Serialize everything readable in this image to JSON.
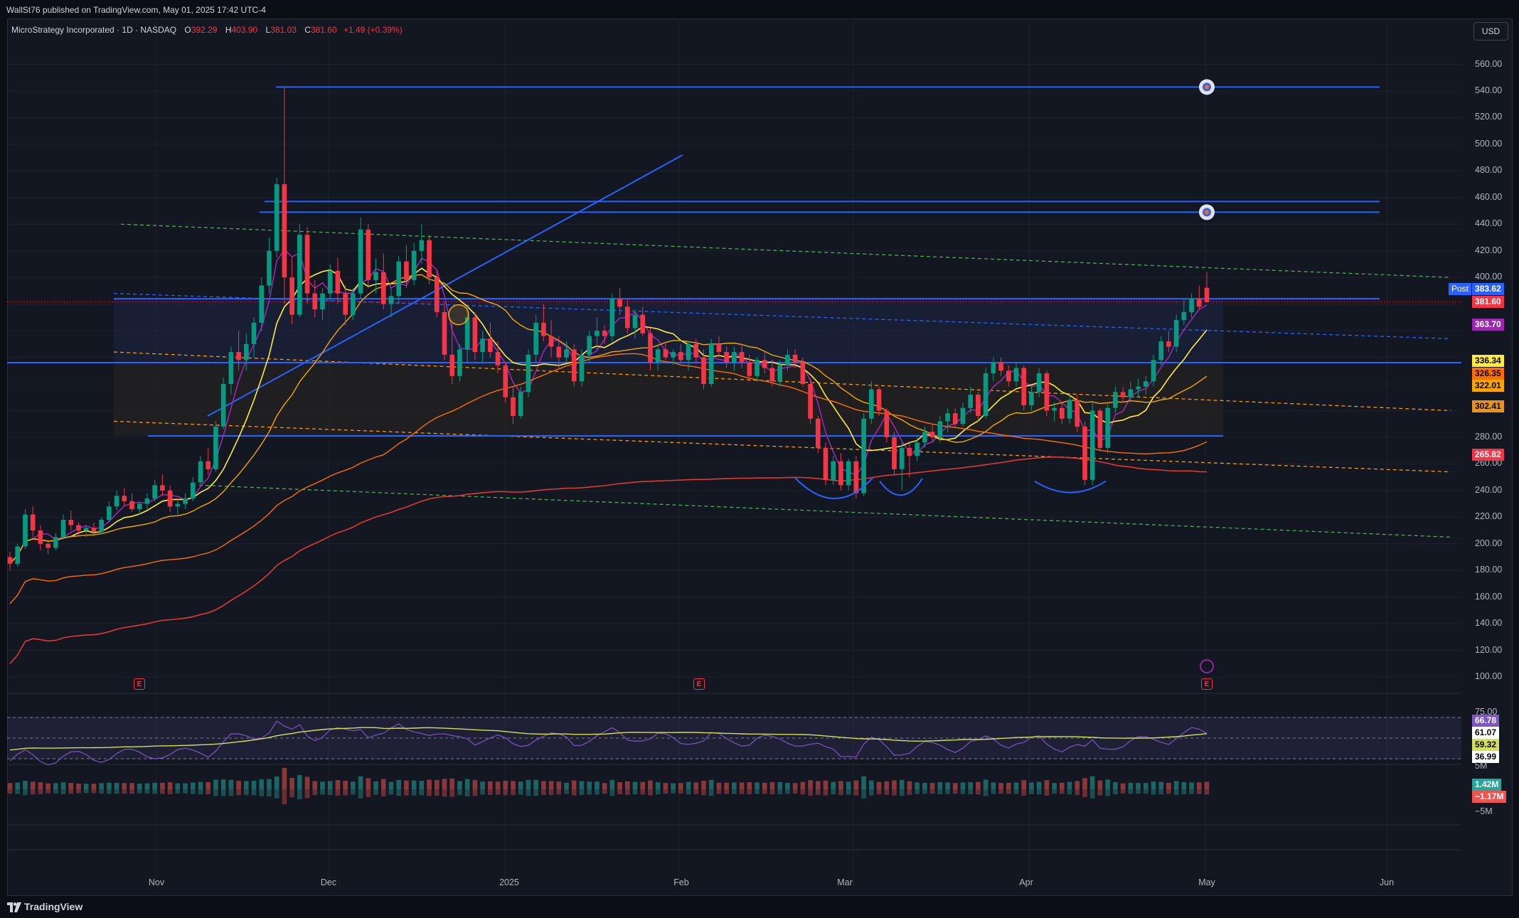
{
  "publish_info": "WallSt76 published on TradingView.com, May 01, 2025 17:42 UTC-4",
  "legend": {
    "symbol": "MicroStrategy Incorporated · 1D · NASDAQ",
    "o_label": "O",
    "o": "392.29",
    "h_label": "H",
    "h": "403.90",
    "l_label": "L",
    "l": "381.03",
    "c_label": "C",
    "c": "381.60",
    "change": "+1.49 (+0.39%)"
  },
  "currency": "USD",
  "brand": "TradingView",
  "colors": {
    "up": "#089981",
    "down": "#f23645",
    "background": "#131722",
    "trendline": "#2962ff"
  },
  "price_axis_labels": [
    "560.00",
    "540.00",
    "520.00",
    "500.00",
    "480.00",
    "460.00",
    "440.00",
    "420.00",
    "400.00",
    "280.00",
    "260.00",
    "240.00",
    "220.00",
    "200.00",
    "180.00",
    "160.00",
    "140.00",
    "120.00",
    "100.00"
  ],
  "price_badges": [
    {
      "text": "383.62",
      "prefix": "Post",
      "bg": "#2962ff",
      "fg": "#ffffff"
    },
    {
      "text": "381.60",
      "bg": "#f23645",
      "fg": "#ffffff"
    },
    {
      "text": "363.70",
      "bg": "#9c27b0",
      "fg": "#ffffff"
    },
    {
      "text": "336.34",
      "bg": "#ffeb3b",
      "fg": "#000000"
    },
    {
      "text": "326.35",
      "bg": "#ff6d00",
      "fg": "#000000"
    },
    {
      "text": "322.01",
      "bg": "#f7a600",
      "fg": "#000000"
    },
    {
      "text": "302.41",
      "bg": "#e8941a",
      "fg": "#000000"
    },
    {
      "text": "265.82",
      "bg": "#f23645",
      "fg": "#ffffff"
    }
  ],
  "rsi_axis": [
    "75.00"
  ],
  "rsi_badges": [
    {
      "text": "66.78",
      "bg": "#7e57c2",
      "fg": "#ffffff"
    },
    {
      "text": "61.07",
      "bg": "#ffffff",
      "fg": "#000000"
    },
    {
      "text": "59.32",
      "bg": "#d4e157",
      "fg": "#000000"
    },
    {
      "text": "36.99",
      "bg": "#ffffff",
      "fg": "#000000"
    }
  ],
  "volume_axis": [
    "5M",
    "−5M"
  ],
  "volume_badges": [
    {
      "text": "1.42M",
      "bg": "#26a69a",
      "fg": "#ffffff"
    },
    {
      "text": "−1.17M",
      "bg": "#ef5350",
      "fg": "#ffffff"
    }
  ],
  "time_axis": [
    "Nov",
    "Dec",
    "2025",
    "Feb",
    "Mar",
    "Apr",
    "May",
    "Jun"
  ],
  "earnings_marker": "E",
  "chart_data": {
    "type": "candlestick",
    "symbol": "MSTR",
    "interval": "1D",
    "ylim": [
      100,
      570
    ],
    "last": {
      "open": 392.29,
      "high": 403.9,
      "low": 381.03,
      "close": 381.6
    },
    "horizontal_levels": [
      543,
      457,
      449,
      383.6,
      336,
      281
    ],
    "patterns": [
      "two cup/inverse-head-and-shoulders arcs near 235-240"
    ],
    "candles": [
      [
        190,
        194,
        180,
        185
      ],
      [
        185,
        200,
        183,
        198
      ],
      [
        198,
        226,
        196,
        222
      ],
      [
        222,
        228,
        205,
        210
      ],
      [
        210,
        214,
        195,
        200
      ],
      [
        200,
        203,
        192,
        197
      ],
      [
        197,
        208,
        195,
        205
      ],
      [
        205,
        222,
        203,
        218
      ],
      [
        218,
        225,
        210,
        214
      ],
      [
        214,
        216,
        206,
        210
      ],
      [
        210,
        214,
        205,
        212
      ],
      [
        212,
        216,
        207,
        209
      ],
      [
        209,
        220,
        207,
        218
      ],
      [
        218,
        232,
        216,
        228
      ],
      [
        228,
        240,
        225,
        236
      ],
      [
        236,
        242,
        228,
        232
      ],
      [
        232,
        238,
        224,
        226
      ],
      [
        226,
        232,
        222,
        230
      ],
      [
        230,
        238,
        226,
        234
      ],
      [
        234,
        248,
        232,
        244
      ],
      [
        244,
        252,
        236,
        240
      ],
      [
        240,
        244,
        224,
        228
      ],
      [
        228,
        234,
        222,
        230
      ],
      [
        230,
        238,
        226,
        234
      ],
      [
        234,
        250,
        232,
        246
      ],
      [
        246,
        266,
        244,
        262
      ],
      [
        262,
        272,
        252,
        256
      ],
      [
        256,
        292,
        254,
        288
      ],
      [
        288,
        325,
        286,
        320
      ],
      [
        320,
        348,
        312,
        344
      ],
      [
        344,
        360,
        330,
        338
      ],
      [
        338,
        358,
        330,
        350
      ],
      [
        350,
        370,
        340,
        366
      ],
      [
        366,
        400,
        360,
        394
      ],
      [
        394,
        430,
        388,
        420
      ],
      [
        420,
        475,
        415,
        470
      ],
      [
        470,
        543,
        380,
        400
      ],
      [
        400,
        415,
        365,
        372
      ],
      [
        372,
        440,
        370,
        432
      ],
      [
        432,
        438,
        380,
        388
      ],
      [
        388,
        398,
        370,
        376
      ],
      [
        376,
        392,
        368,
        388
      ],
      [
        388,
        410,
        382,
        405
      ],
      [
        405,
        415,
        380,
        388
      ],
      [
        388,
        394,
        364,
        372
      ],
      [
        372,
        392,
        368,
        388
      ],
      [
        388,
        445,
        384,
        436
      ],
      [
        436,
        440,
        392,
        398
      ],
      [
        398,
        414,
        388,
        404
      ],
      [
        404,
        418,
        376,
        380
      ],
      [
        380,
        392,
        370,
        386
      ],
      [
        386,
        416,
        380,
        412
      ],
      [
        412,
        424,
        392,
        398
      ],
      [
        398,
        426,
        394,
        420
      ],
      [
        420,
        440,
        410,
        428
      ],
      [
        428,
        432,
        395,
        400
      ],
      [
        400,
        405,
        370,
        374
      ],
      [
        374,
        382,
        338,
        342
      ],
      [
        342,
        366,
        320,
        326
      ],
      [
        326,
        350,
        322,
        346
      ],
      [
        346,
        378,
        336,
        370
      ],
      [
        370,
        374,
        338,
        344
      ],
      [
        344,
        360,
        336,
        354
      ],
      [
        354,
        366,
        340,
        344
      ],
      [
        344,
        352,
        328,
        334
      ],
      [
        334,
        336,
        306,
        310
      ],
      [
        310,
        318,
        290,
        296
      ],
      [
        296,
        318,
        294,
        314
      ],
      [
        314,
        346,
        310,
        342
      ],
      [
        342,
        372,
        336,
        366
      ],
      [
        366,
        380,
        352,
        356
      ],
      [
        356,
        368,
        340,
        348
      ],
      [
        348,
        356,
        332,
        340
      ],
      [
        340,
        352,
        336,
        346
      ],
      [
        346,
        350,
        318,
        322
      ],
      [
        322,
        346,
        318,
        342
      ],
      [
        342,
        360,
        336,
        356
      ],
      [
        356,
        370,
        346,
        360
      ],
      [
        360,
        364,
        350,
        356
      ],
      [
        356,
        388,
        352,
        384
      ],
      [
        384,
        392,
        372,
        378
      ],
      [
        378,
        384,
        358,
        362
      ],
      [
        362,
        376,
        354,
        372
      ],
      [
        372,
        378,
        356,
        358
      ],
      [
        358,
        362,
        330,
        336
      ],
      [
        336,
        350,
        330,
        346
      ],
      [
        346,
        352,
        338,
        340
      ],
      [
        340,
        346,
        334,
        344
      ],
      [
        344,
        350,
        336,
        338
      ],
      [
        338,
        352,
        330,
        350
      ],
      [
        350,
        354,
        336,
        340
      ],
      [
        340,
        346,
        316,
        320
      ],
      [
        320,
        354,
        318,
        350
      ],
      [
        350,
        356,
        340,
        344
      ],
      [
        344,
        348,
        332,
        336
      ],
      [
        336,
        348,
        330,
        344
      ],
      [
        344,
        350,
        332,
        336
      ],
      [
        336,
        342,
        322,
        326
      ],
      [
        326,
        340,
        322,
        338
      ],
      [
        338,
        344,
        328,
        332
      ],
      [
        332,
        338,
        318,
        322
      ],
      [
        322,
        338,
        318,
        334
      ],
      [
        334,
        346,
        330,
        342
      ],
      [
        342,
        346,
        332,
        336
      ],
      [
        336,
        340,
        318,
        320
      ],
      [
        320,
        324,
        290,
        294
      ],
      [
        294,
        296,
        268,
        272
      ],
      [
        272,
        276,
        244,
        248
      ],
      [
        248,
        266,
        244,
        262
      ],
      [
        262,
        268,
        240,
        244
      ],
      [
        244,
        264,
        240,
        262
      ],
      [
        262,
        266,
        234,
        238
      ],
      [
        238,
        298,
        236,
        294
      ],
      [
        294,
        322,
        290,
        316
      ],
      [
        316,
        318,
        296,
        300
      ],
      [
        300,
        302,
        276,
        280
      ],
      [
        280,
        284,
        252,
        256
      ],
      [
        256,
        276,
        240,
        272
      ],
      [
        272,
        276,
        250,
        266
      ],
      [
        266,
        280,
        262,
        276
      ],
      [
        276,
        288,
        272,
        284
      ],
      [
        284,
        290,
        276,
        280
      ],
      [
        280,
        296,
        276,
        292
      ],
      [
        292,
        302,
        284,
        298
      ],
      [
        298,
        302,
        288,
        290
      ],
      [
        290,
        306,
        288,
        302
      ],
      [
        302,
        318,
        298,
        312
      ],
      [
        312,
        314,
        292,
        296
      ],
      [
        296,
        332,
        294,
        328
      ],
      [
        328,
        340,
        322,
        336
      ],
      [
        336,
        340,
        326,
        330
      ],
      [
        330,
        334,
        318,
        322
      ],
      [
        322,
        336,
        318,
        332
      ],
      [
        332,
        334,
        300,
        304
      ],
      [
        304,
        318,
        300,
        314
      ],
      [
        314,
        332,
        310,
        328
      ],
      [
        328,
        330,
        296,
        300
      ],
      [
        300,
        306,
        292,
        302
      ],
      [
        302,
        306,
        290,
        294
      ],
      [
        294,
        312,
        290,
        308
      ],
      [
        308,
        312,
        284,
        288
      ],
      [
        288,
        292,
        244,
        248
      ],
      [
        248,
        306,
        244,
        300
      ],
      [
        300,
        302,
        270,
        272
      ],
      [
        272,
        306,
        268,
        302
      ],
      [
        302,
        318,
        298,
        314
      ],
      [
        314,
        318,
        306,
        310
      ],
      [
        310,
        322,
        306,
        316
      ],
      [
        316,
        324,
        310,
        318
      ],
      [
        318,
        326,
        312,
        322
      ],
      [
        322,
        342,
        318,
        338
      ],
      [
        338,
        356,
        334,
        352
      ],
      [
        352,
        360,
        344,
        348
      ],
      [
        348,
        372,
        344,
        368
      ],
      [
        368,
        384,
        364,
        374
      ],
      [
        374,
        388,
        370,
        384
      ],
      [
        384,
        394,
        376,
        378
      ],
      [
        392.29,
        403.9,
        381.03,
        381.6
      ]
    ]
  }
}
